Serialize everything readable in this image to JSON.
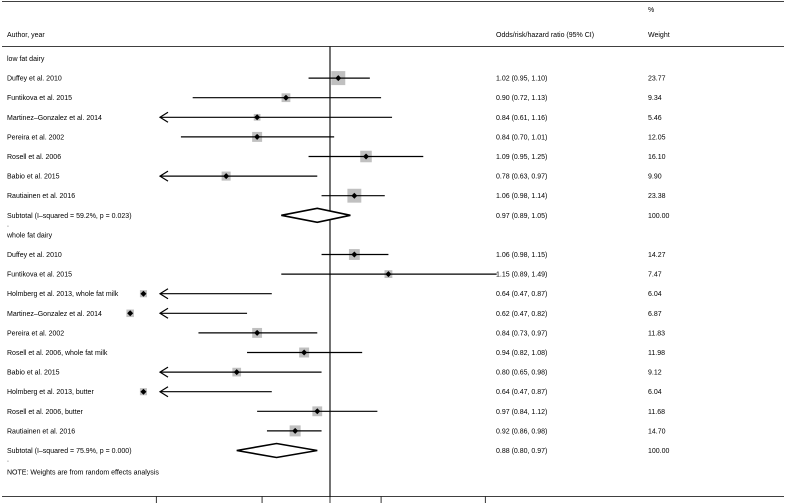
{
  "chart_data": {
    "type": "forest",
    "header": {
      "study": "Author, year",
      "effect": "Odds/risk/hazard ratio (95% CI)",
      "weight_pct": "%",
      "weight": "Weight"
    },
    "null_value": 1,
    "groups": [
      {
        "label": "low fat dairy",
        "studies": [
          {
            "name": "Duffey et al. 2010",
            "est": 1.02,
            "lo": 0.95,
            "hi": 1.1,
            "ci": "1.02 (0.95, 1.10)",
            "weight": "23.77",
            "w": 23.77
          },
          {
            "name": "Funtikova et al. 2015",
            "est": 0.9,
            "lo": 0.72,
            "hi": 1.13,
            "ci": "0.90 (0.72, 1.13)",
            "weight": "9.34",
            "w": 9.34
          },
          {
            "name": "Martinez–Gonzalez et al. 2014",
            "est": 0.84,
            "lo": 0.61,
            "hi": 1.16,
            "ci": "0.84 (0.61, 1.16)",
            "weight": "5.46",
            "w": 5.46
          },
          {
            "name": "Pereira et al. 2002",
            "est": 0.84,
            "lo": 0.7,
            "hi": 1.01,
            "ci": "0.84 (0.70, 1.01)",
            "weight": "12.05",
            "w": 12.05
          },
          {
            "name": "Rosell et al. 2006",
            "est": 1.09,
            "lo": 0.95,
            "hi": 1.25,
            "ci": "1.09 (0.95, 1.25)",
            "weight": "16.10",
            "w": 16.1
          },
          {
            "name": "Babio et al. 2015",
            "est": 0.78,
            "lo": 0.63,
            "hi": 0.97,
            "ci": "0.78 (0.63, 0.97)",
            "weight": "9.90",
            "w": 9.9
          },
          {
            "name": "Rautiainen et al. 2016",
            "est": 1.06,
            "lo": 0.98,
            "hi": 1.14,
            "ci": "1.06 (0.98, 1.14)",
            "weight": "23.38",
            "w": 23.38
          }
        ],
        "subtotal": {
          "label": "Subtotal  (I–squared = 59.2%, p = 0.023)",
          "est": 0.97,
          "lo": 0.89,
          "hi": 1.05,
          "ci": "0.97 (0.89, 1.05)",
          "weight": "100.00"
        }
      },
      {
        "label": "whole fat dairy",
        "studies": [
          {
            "name": "Duffey et al. 2010",
            "est": 1.06,
            "lo": 0.98,
            "hi": 1.15,
            "ci": "1.06 (0.98, 1.15)",
            "weight": "14.27",
            "w": 14.27
          },
          {
            "name": "Funtikova et al. 2015",
            "est": 1.15,
            "lo": 0.89,
            "hi": 1.49,
            "ci": "1.15 (0.89, 1.49)",
            "weight": "7.47",
            "w": 7.47
          },
          {
            "name": "Holmberg et al. 2013, whole fat milk",
            "est": 0.64,
            "lo": 0.47,
            "hi": 0.87,
            "ci": "0.64 (0.47, 0.87)",
            "weight": "6.04",
            "w": 6.04
          },
          {
            "name": "Martinez–Gonzalez et al. 2014",
            "est": 0.62,
            "lo": 0.47,
            "hi": 0.82,
            "ci": "0.62 (0.47, 0.82)",
            "weight": "6.87",
            "w": 6.87
          },
          {
            "name": "Pereira et al. 2002",
            "est": 0.84,
            "lo": 0.73,
            "hi": 0.97,
            "ci": "0.84 (0.73, 0.97)",
            "weight": "11.83",
            "w": 11.83
          },
          {
            "name": "Rosell et al. 2006, whole fat milk",
            "est": 0.94,
            "lo": 0.82,
            "hi": 1.08,
            "ci": "0.94 (0.82, 1.08)",
            "weight": "11.98",
            "w": 11.98
          },
          {
            "name": "Babio et al. 2015",
            "est": 0.8,
            "lo": 0.65,
            "hi": 0.98,
            "ci": "0.80 (0.65, 0.98)",
            "weight": "9.12",
            "w": 9.12
          },
          {
            "name": "Holmberg et al. 2013, butter",
            "est": 0.64,
            "lo": 0.47,
            "hi": 0.87,
            "ci": "0.64 (0.47, 0.87)",
            "weight": "6.04",
            "w": 6.04
          },
          {
            "name": "Rosell et al. 2006, butter",
            "est": 0.97,
            "lo": 0.84,
            "hi": 1.12,
            "ci": "0.97 (0.84, 1.12)",
            "weight": "11.68",
            "w": 11.68
          },
          {
            "name": "Rautiainen et al. 2016",
            "est": 0.92,
            "lo": 0.86,
            "hi": 0.98,
            "ci": "0.92 (0.86, 0.98)",
            "weight": "14.70",
            "w": 14.7
          }
        ],
        "subtotal": {
          "label": "Subtotal  (I–squared = 75.9%, p = 0.000)",
          "est": 0.88,
          "lo": 0.8,
          "hi": 0.97,
          "ci": "0.88 (0.80, 0.97)",
          "weight": "100.00"
        }
      }
    ],
    "note": "NOTE: Weights are from random effects analysis",
    "separators": [
      "."
    ],
    "x_scale": "log",
    "xlim": [
      0.5,
      2.0
    ],
    "colors": {
      "box": "#c0c0c0",
      "line": "#000000",
      "point": "#000000"
    }
  }
}
